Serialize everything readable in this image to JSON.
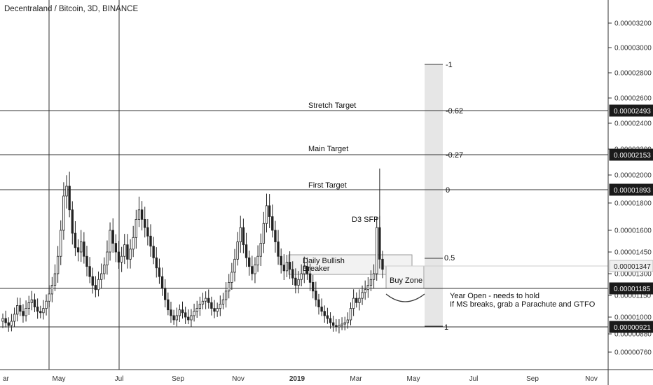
{
  "title": "Decentraland / Bitcoin, 3D, BINANCE",
  "x_labels": [
    "ar",
    "May",
    "Jul",
    "Sep",
    "Nov",
    "2019",
    "Mar",
    "May",
    "Jul",
    "Sep",
    "Nov"
  ],
  "y_ticks": [
    "0.00003200",
    "0.00003000",
    "0.00002800",
    "0.00002600",
    "0.00002400",
    "0.00002200",
    "0.00002000",
    "0.00001800",
    "0.00001600",
    "0.00001450",
    "0.00001300",
    "0.00001150",
    "0.00001000",
    "0.00000880",
    "0.00000760"
  ],
  "price_labels": [
    {
      "text": "0.00002493",
      "style": "dark"
    },
    {
      "text": "0.00002153",
      "style": "dark"
    },
    {
      "text": "0.00001893",
      "style": "dark"
    },
    {
      "text": "0.00001347",
      "style": "light"
    },
    {
      "text": "0.00001185",
      "style": "dark"
    },
    {
      "text": "0.00000921",
      "style": "dark"
    }
  ],
  "fib_labels": [
    "-1",
    "-0.62",
    "-0.27",
    "0",
    "0.5",
    "1"
  ],
  "annotations": {
    "stretch_target": "Stretch Target",
    "main_target": "Main Target",
    "first_target": "First Target",
    "d3_sfp": "D3 SFP",
    "breaker_line1": "Daily Bullish",
    "breaker_line2": "Breaker",
    "buy_zone": "Buy Zone",
    "year_open_line1": "Year Open - needs to hold",
    "year_open_line2": "If MS breaks, grab a Parachute and GTFO"
  },
  "colors": {
    "candle_up": "#ffffff",
    "candle_down": "#222222",
    "line": "#333333",
    "fib_band": "#e6e6e6",
    "zone_fill": "#f2f2f2"
  },
  "chart_data": {
    "type": "candlestick",
    "symbol": "Decentraland / Bitcoin",
    "interval": "3D",
    "exchange": "BINANCE",
    "horizontal_levels": [
      2.493e-05,
      2.153e-05,
      1.893e-05,
      1.185e-05,
      9.21e-06
    ],
    "last_price": 1.347e-05,
    "fib_levels": [
      -1,
      -0.62,
      -0.27,
      0,
      0.5,
      1
    ],
    "fib_anchor_high": 1.893e-05,
    "fib_anchor_low": 9.21e-06,
    "ohlc_close_path": [
      9.9e-06,
      9.6e-06,
      9.4e-06,
      9.7e-06,
      1.02e-05,
      1.08e-05,
      1.04e-05,
      1.01e-05,
      1.06e-05,
      1.1e-05,
      1.12e-05,
      1.07e-05,
      1.04e-05,
      1.03e-05,
      1.06e-05,
      1.11e-05,
      1.16e-05,
      1.22e-05,
      1.3e-05,
      1.42e-05,
      1.6e-05,
      1.85e-05,
      1.92e-05,
      1.75e-05,
      1.58e-05,
      1.48e-05,
      1.45e-05,
      1.52e-05,
      1.42e-05,
      1.35e-05,
      1.28e-05,
      1.22e-05,
      1.19e-05,
      1.26e-05,
      1.3e-05,
      1.36e-05,
      1.45e-05,
      1.6e-05,
      1.51e-05,
      1.45e-05,
      1.38e-05,
      1.42e-05,
      1.5e-05,
      1.4e-05,
      1.47e-05,
      1.55e-05,
      1.68e-05,
      1.75e-05,
      1.68e-05,
      1.62e-05,
      1.56e-05,
      1.49e-05,
      1.41e-05,
      1.34e-05,
      1.28e-05,
      1.2e-05,
      1.12e-05,
      1.05e-05,
      1.01e-05,
      9.8e-06,
      1.01e-05,
      1.05e-05,
      1.03e-05,
      1e-05,
      9.8e-06,
      1.01e-05,
      1.04e-05,
      1.06e-05,
      1.09e-05,
      1.11e-05,
      1.13e-05,
      1.1e-05,
      1.06e-05,
      1.04e-05,
      1.06e-05,
      1.09e-05,
      1.12e-05,
      1.18e-05,
      1.24e-05,
      1.31e-05,
      1.4e-05,
      1.52e-05,
      1.62e-05,
      1.5e-05,
      1.41e-05,
      1.35e-05,
      1.3e-05,
      1.36e-05,
      1.42e-05,
      1.51e-05,
      1.65e-05,
      1.78e-05,
      1.7e-05,
      1.6e-05,
      1.52e-05,
      1.42e-05,
      1.36e-05,
      1.32e-05,
      1.38e-05,
      1.33e-05,
      1.27e-05,
      1.22e-05,
      1.26e-05,
      1.3e-05,
      1.35e-05,
      1.3e-05,
      1.24e-05,
      1.18e-05,
      1.12e-05,
      1.07e-05,
      1.04e-05,
      1.01e-05,
      9.9e-06,
      9.6e-06,
      9.4e-06,
      9.3e-06,
      9.4e-06,
      9.5e-06,
      9.6e-06,
      9.8e-06,
      1.06e-05,
      1.13e-05,
      1.1e-05,
      1.13e-05,
      1.17e-05,
      1.19e-05,
      1.22e-05,
      1.26e-05,
      1.3e-05,
      1.62e-05,
      1.4e-05,
      1.33e-05
    ]
  }
}
